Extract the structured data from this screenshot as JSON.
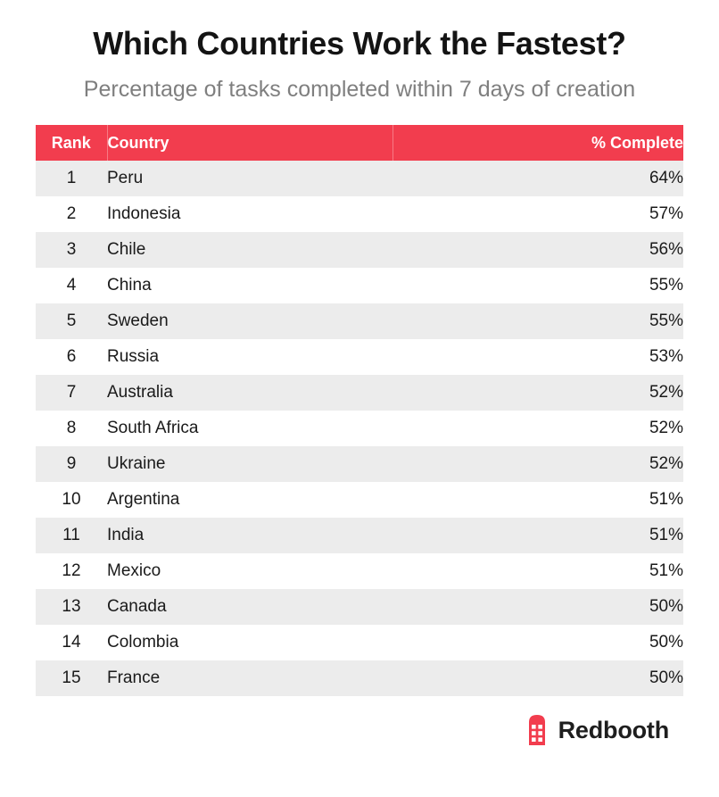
{
  "title": "Which Countries Work the Fastest?",
  "subtitle": "Percentage of tasks completed within 7 days of creation",
  "colors": {
    "header_bg": "#f23d4e",
    "row_alt_bg": "#ececec",
    "logo": "#f23d4e"
  },
  "brand": {
    "name": "Redbooth",
    "icon": "redbooth-logo-icon"
  },
  "chart_data": {
    "type": "table",
    "columns": [
      "Rank",
      "Country",
      "% Complete"
    ],
    "rows": [
      {
        "rank": "1",
        "country": "Peru",
        "percent": "64%"
      },
      {
        "rank": "2",
        "country": "Indonesia",
        "percent": "57%"
      },
      {
        "rank": "3",
        "country": "Chile",
        "percent": "56%"
      },
      {
        "rank": "4",
        "country": "China",
        "percent": "55%"
      },
      {
        "rank": "5",
        "country": "Sweden",
        "percent": "55%"
      },
      {
        "rank": "6",
        "country": "Russia",
        "percent": "53%"
      },
      {
        "rank": "7",
        "country": "Australia",
        "percent": "52%"
      },
      {
        "rank": "8",
        "country": "South Africa",
        "percent": "52%"
      },
      {
        "rank": "9",
        "country": "Ukraine",
        "percent": "52%"
      },
      {
        "rank": "10",
        "country": "Argentina",
        "percent": "51%"
      },
      {
        "rank": "11",
        "country": "India",
        "percent": "51%"
      },
      {
        "rank": "12",
        "country": "Mexico",
        "percent": "51%"
      },
      {
        "rank": "13",
        "country": "Canada",
        "percent": "50%"
      },
      {
        "rank": "14",
        "country": "Colombia",
        "percent": "50%"
      },
      {
        "rank": "15",
        "country": "France",
        "percent": "50%"
      }
    ]
  }
}
